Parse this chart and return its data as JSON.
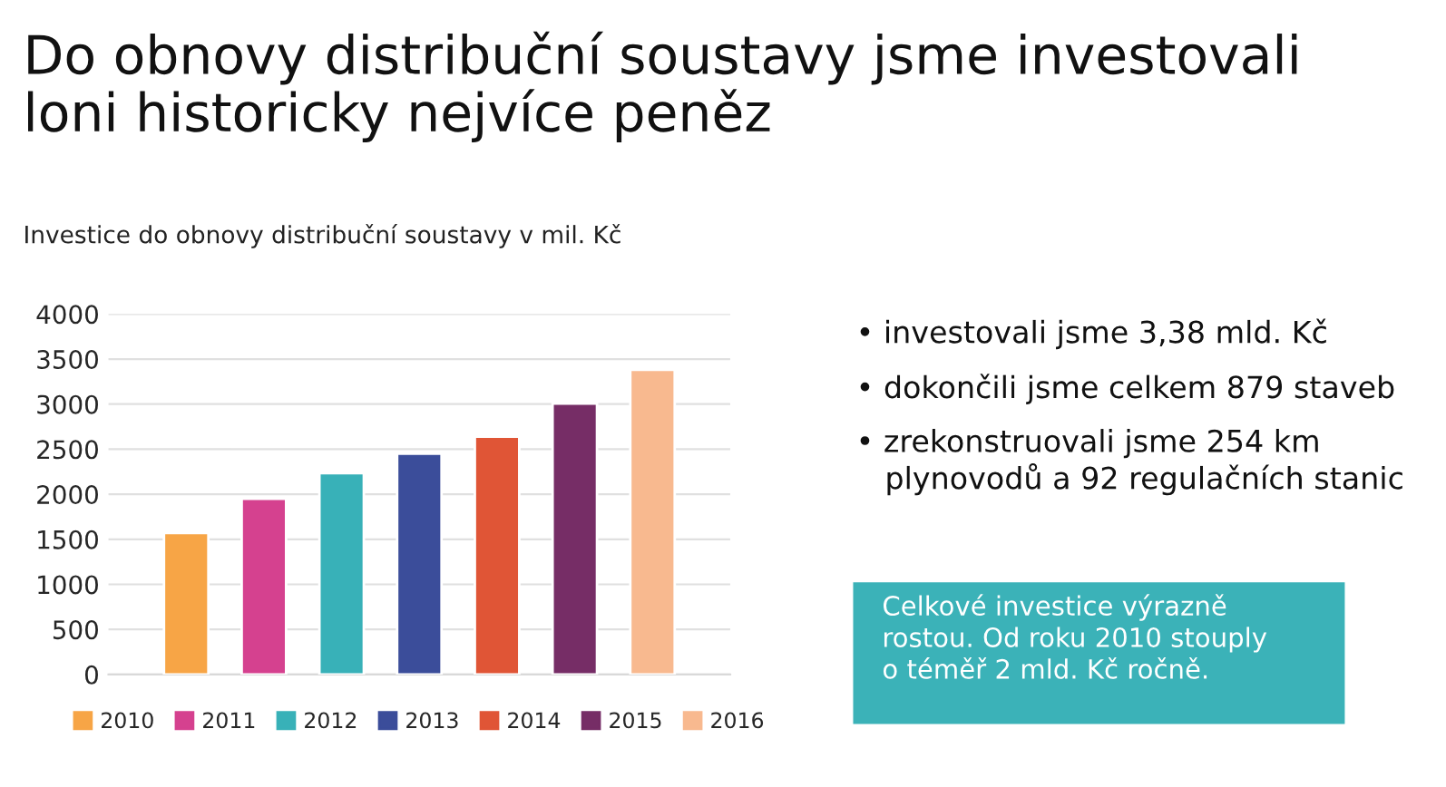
{
  "chart_data": {
    "type": "bar",
    "title": "Do obnovy distribuční soustavy jsme investovali\nloni historicky nejvíce peněz",
    "subtitle": "Investice do obnovy distribuční soustavy v mil. Kč",
    "categories": [
      null
    ],
    "series": [
      {
        "name": "2010",
        "color": "#f7a546",
        "values": [
          1570
        ]
      },
      {
        "name": "2011",
        "color": "#d5418f",
        "values": [
          1950
        ]
      },
      {
        "name": "2012",
        "color": "#38b1b8",
        "values": [
          2235
        ]
      },
      {
        "name": "2013",
        "color": "#3b4d9a",
        "values": [
          2450
        ]
      },
      {
        "name": "2014",
        "color": "#e05536",
        "values": [
          2640
        ]
      },
      {
        "name": "2015",
        "color": "#762d66",
        "values": [
          3005
        ]
      },
      {
        "name": "2016",
        "color": "#f8b98f",
        "values": [
          3380
        ]
      }
    ],
    "ylim": [
      0,
      4000
    ],
    "yticks": [
      0,
      500,
      1000,
      1500,
      2000,
      2500,
      3000,
      3500,
      4000
    ],
    "grid": "y",
    "legend": "bottom",
    "annotations": [
      "• investovali jsme 3,38 mld. Kč",
      "• dokončili jsme celkem 879 staveb",
      "• zrekonstruovali jsme 254 km\n   plynovodů a 92 regulačních stanic",
      "Celkové investice výrazně\nrostou. Od roku 2010 stouply\no téměř 2 mld. Kč ročně."
    ]
  }
}
